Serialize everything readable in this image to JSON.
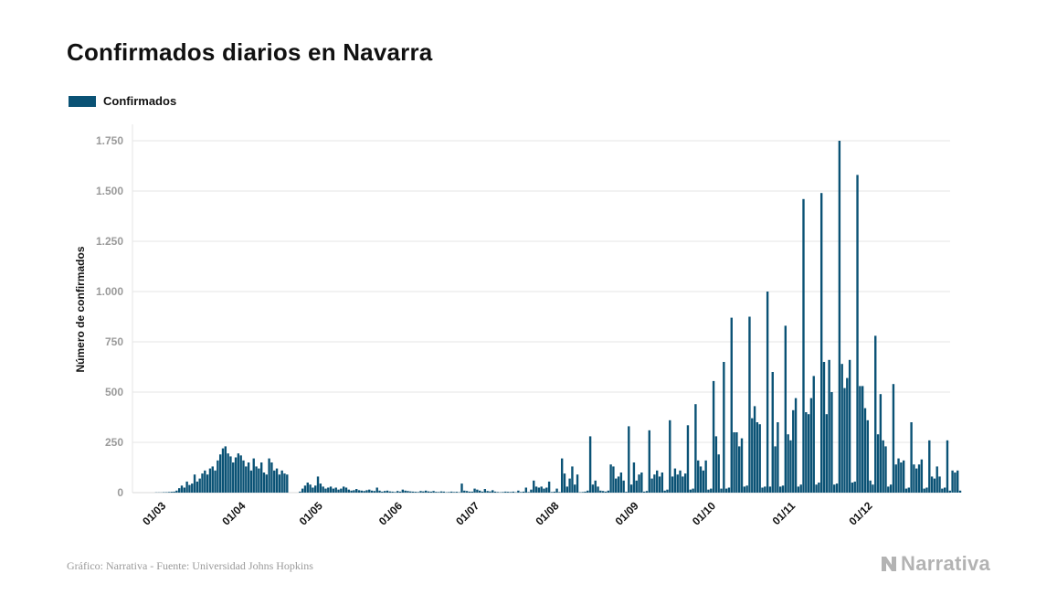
{
  "title": "Confirmados diarios en Navarra",
  "footer": {
    "source": "Gráfico: Narrativa - Fuente: Universidad Johns Hopkins"
  },
  "brand": {
    "name": "Narrativa",
    "icon": "narrativa-logo-icon"
  },
  "colors": {
    "bar": "#0a5275",
    "grid": "#e6e6e6",
    "tick": "#9a9a9a",
    "text": "#111111",
    "brand": "#b3b3b3"
  },
  "chart_data": {
    "type": "bar",
    "title": "Confirmados diarios en Navarra",
    "xlabel": "",
    "ylabel": "Número de confirmados",
    "ylim": [
      0,
      1750
    ],
    "yticks": [
      0,
      250,
      500,
      750,
      1000,
      1250,
      1500,
      1750
    ],
    "ytick_labels": [
      "0",
      "250",
      "500",
      "750",
      "1.000",
      "1.250",
      "1.500",
      "1.750"
    ],
    "xticks": [
      "2020-03-01",
      "2020-04-01",
      "2020-05-01",
      "2020-06-01",
      "2020-07-01",
      "2020-08-01",
      "2020-09-01",
      "2020-10-01",
      "2020-11-01",
      "2020-12-01"
    ],
    "xtick_labels": [
      "01/03",
      "01/04",
      "01/05",
      "01/06",
      "01/07",
      "01/08",
      "01/09",
      "01/10",
      "01/11",
      "01/12"
    ],
    "grid": true,
    "legend": {
      "position": "top-left",
      "entries": [
        "Confirmados"
      ]
    },
    "x_start": "2020-02-24",
    "series": [
      {
        "name": "Confirmados",
        "values": [
          0,
          0,
          0,
          0,
          0,
          0,
          0,
          1,
          1,
          1,
          2,
          2,
          3,
          4,
          5,
          10,
          22,
          35,
          25,
          55,
          38,
          45,
          90,
          55,
          70,
          95,
          110,
          90,
          120,
          130,
          110,
          160,
          190,
          220,
          230,
          195,
          180,
          150,
          175,
          195,
          185,
          160,
          130,
          150,
          110,
          170,
          130,
          120,
          150,
          100,
          90,
          170,
          150,
          110,
          120,
          90,
          110,
          95,
          90,
          0,
          0,
          0,
          0,
          5,
          20,
          35,
          50,
          40,
          25,
          35,
          80,
          45,
          30,
          20,
          25,
          30,
          20,
          25,
          15,
          20,
          30,
          25,
          15,
          10,
          12,
          18,
          12,
          10,
          8,
          12,
          15,
          10,
          8,
          25,
          10,
          5,
          8,
          10,
          6,
          5,
          3,
          8,
          5,
          15,
          10,
          8,
          6,
          5,
          4,
          3,
          8,
          6,
          10,
          6,
          5,
          8,
          4,
          3,
          6,
          5,
          2,
          3,
          5,
          3,
          4,
          2,
          45,
          10,
          8,
          5,
          5,
          20,
          15,
          10,
          5,
          18,
          8,
          6,
          12,
          5,
          3,
          2,
          3,
          5,
          4,
          3,
          5,
          2,
          10,
          3,
          5,
          25,
          3,
          15,
          60,
          30,
          25,
          30,
          20,
          25,
          55,
          3,
          5,
          20,
          3,
          170,
          95,
          30,
          70,
          130,
          40,
          90,
          2,
          3,
          5,
          10,
          280,
          40,
          60,
          30,
          10,
          8,
          5,
          10,
          140,
          130,
          70,
          80,
          100,
          60,
          4,
          330,
          40,
          150,
          60,
          90,
          100,
          5,
          8,
          310,
          70,
          90,
          110,
          80,
          100,
          10,
          15,
          360,
          80,
          120,
          90,
          110,
          80,
          95,
          335,
          15,
          20,
          440,
          160,
          130,
          110,
          160,
          15,
          20,
          555,
          280,
          190,
          20,
          650,
          20,
          25,
          870,
          300,
          300,
          230,
          270,
          30,
          35,
          875,
          370,
          430,
          350,
          340,
          25,
          30,
          1000,
          30,
          600,
          230,
          350,
          30,
          35,
          830,
          290,
          260,
          410,
          470,
          30,
          40,
          1460,
          400,
          390,
          470,
          580,
          40,
          50,
          1490,
          650,
          390,
          660,
          500,
          40,
          45,
          1750,
          640,
          520,
          570,
          660,
          50,
          55,
          1580,
          530,
          530,
          420,
          360,
          60,
          40,
          780,
          290,
          490,
          260,
          230,
          30,
          40,
          540,
          140,
          170,
          150,
          160,
          20,
          25,
          350,
          140,
          120,
          140,
          165,
          20,
          25,
          260,
          80,
          70,
          130,
          80,
          20,
          25,
          260,
          10,
          110,
          100,
          110,
          10
        ]
      }
    ]
  }
}
